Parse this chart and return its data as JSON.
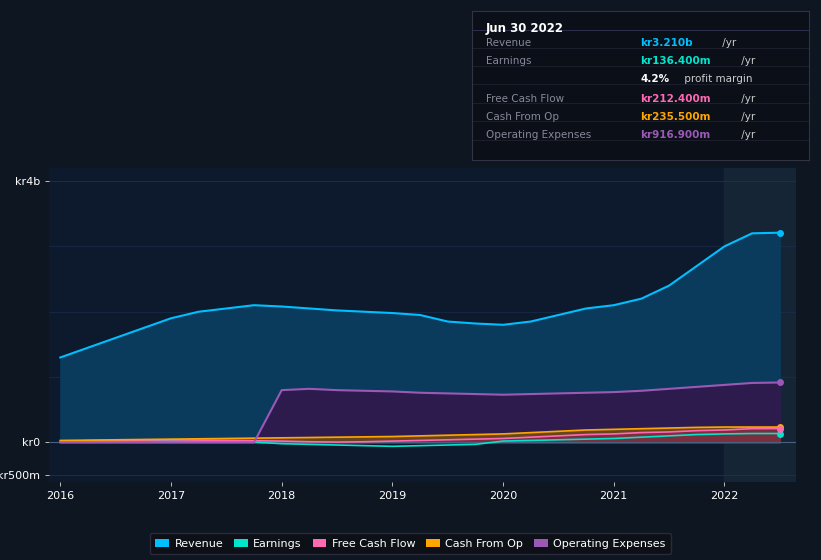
{
  "bg_color": "#0e1621",
  "plot_bg_color": "#0d1a2d",
  "grid_color": "#1e3050",
  "years": [
    2016.0,
    2016.25,
    2016.5,
    2016.75,
    2017.0,
    2017.25,
    2017.5,
    2017.75,
    2018.0,
    2018.25,
    2018.5,
    2018.75,
    2019.0,
    2019.25,
    2019.5,
    2019.75,
    2020.0,
    2020.25,
    2020.5,
    2020.75,
    2021.0,
    2021.25,
    2021.5,
    2021.75,
    2022.0,
    2022.25,
    2022.5
  ],
  "revenue": [
    1300,
    1450,
    1600,
    1750,
    1900,
    2000,
    2050,
    2100,
    2080,
    2050,
    2020,
    2000,
    1980,
    1950,
    1850,
    1820,
    1800,
    1850,
    1950,
    2050,
    2100,
    2200,
    2400,
    2700,
    3000,
    3200,
    3210
  ],
  "earnings": [
    10,
    15,
    20,
    25,
    20,
    15,
    10,
    5,
    -20,
    -30,
    -40,
    -50,
    -60,
    -50,
    -40,
    -30,
    20,
    30,
    40,
    50,
    60,
    80,
    100,
    120,
    130,
    136,
    136
  ],
  "free_cash_flow": [
    20,
    25,
    30,
    35,
    40,
    35,
    30,
    25,
    20,
    10,
    5,
    10,
    20,
    30,
    40,
    50,
    60,
    80,
    100,
    120,
    130,
    150,
    160,
    180,
    190,
    210,
    212
  ],
  "cash_from_op": [
    30,
    35,
    40,
    45,
    50,
    55,
    60,
    65,
    70,
    75,
    80,
    85,
    90,
    100,
    110,
    120,
    130,
    150,
    170,
    190,
    200,
    210,
    220,
    230,
    235,
    235,
    235
  ],
  "operating_expenses": [
    0,
    0,
    0,
    0,
    0,
    0,
    0,
    0,
    800,
    820,
    800,
    790,
    780,
    760,
    750,
    740,
    730,
    740,
    750,
    760,
    770,
    790,
    820,
    850,
    880,
    910,
    917
  ],
  "revenue_color": "#00bfff",
  "earnings_color": "#00e5cc",
  "free_cash_flow_color": "#ff69b4",
  "cash_from_op_color": "#ffa500",
  "operating_expenses_color": "#9b59b6",
  "revenue_fill_color": "#0a3a5c",
  "operating_expenses_fill_color": "#2d1b4e",
  "highlight_x_start": 2022.0,
  "ylim_min": -600,
  "ylim_max": 4200,
  "ytick_positions": [
    -500,
    0,
    4000
  ],
  "ytick_labels": [
    "-kr500m",
    "kr0",
    "kr4b"
  ],
  "xticks": [
    2016,
    2017,
    2018,
    2019,
    2020,
    2021,
    2022
  ],
  "info_box": {
    "title": "Jun 30 2022",
    "rows": [
      {
        "label": "Revenue",
        "value": "kr3.210b",
        "value_color": "#00bfff",
        "unit": " /yr",
        "bold": true
      },
      {
        "label": "Earnings",
        "value": "kr136.400m",
        "value_color": "#00e5cc",
        "unit": " /yr",
        "bold": true
      },
      {
        "label": "",
        "value": "4.2%",
        "value_color": "#ffffff",
        "unit": " profit margin",
        "bold": true
      },
      {
        "label": "Free Cash Flow",
        "value": "kr212.400m",
        "value_color": "#ff69b4",
        "unit": " /yr",
        "bold": true
      },
      {
        "label": "Cash From Op",
        "value": "kr235.500m",
        "value_color": "#ffa500",
        "unit": " /yr",
        "bold": true
      },
      {
        "label": "Operating Expenses",
        "value": "kr916.900m",
        "value_color": "#9b59b6",
        "unit": " /yr",
        "bold": true
      }
    ]
  },
  "legend_items": [
    {
      "label": "Revenue",
      "color": "#00bfff"
    },
    {
      "label": "Earnings",
      "color": "#00e5cc"
    },
    {
      "label": "Free Cash Flow",
      "color": "#ff69b4"
    },
    {
      "label": "Cash From Op",
      "color": "#ffa500"
    },
    {
      "label": "Operating Expenses",
      "color": "#9b59b6"
    }
  ]
}
